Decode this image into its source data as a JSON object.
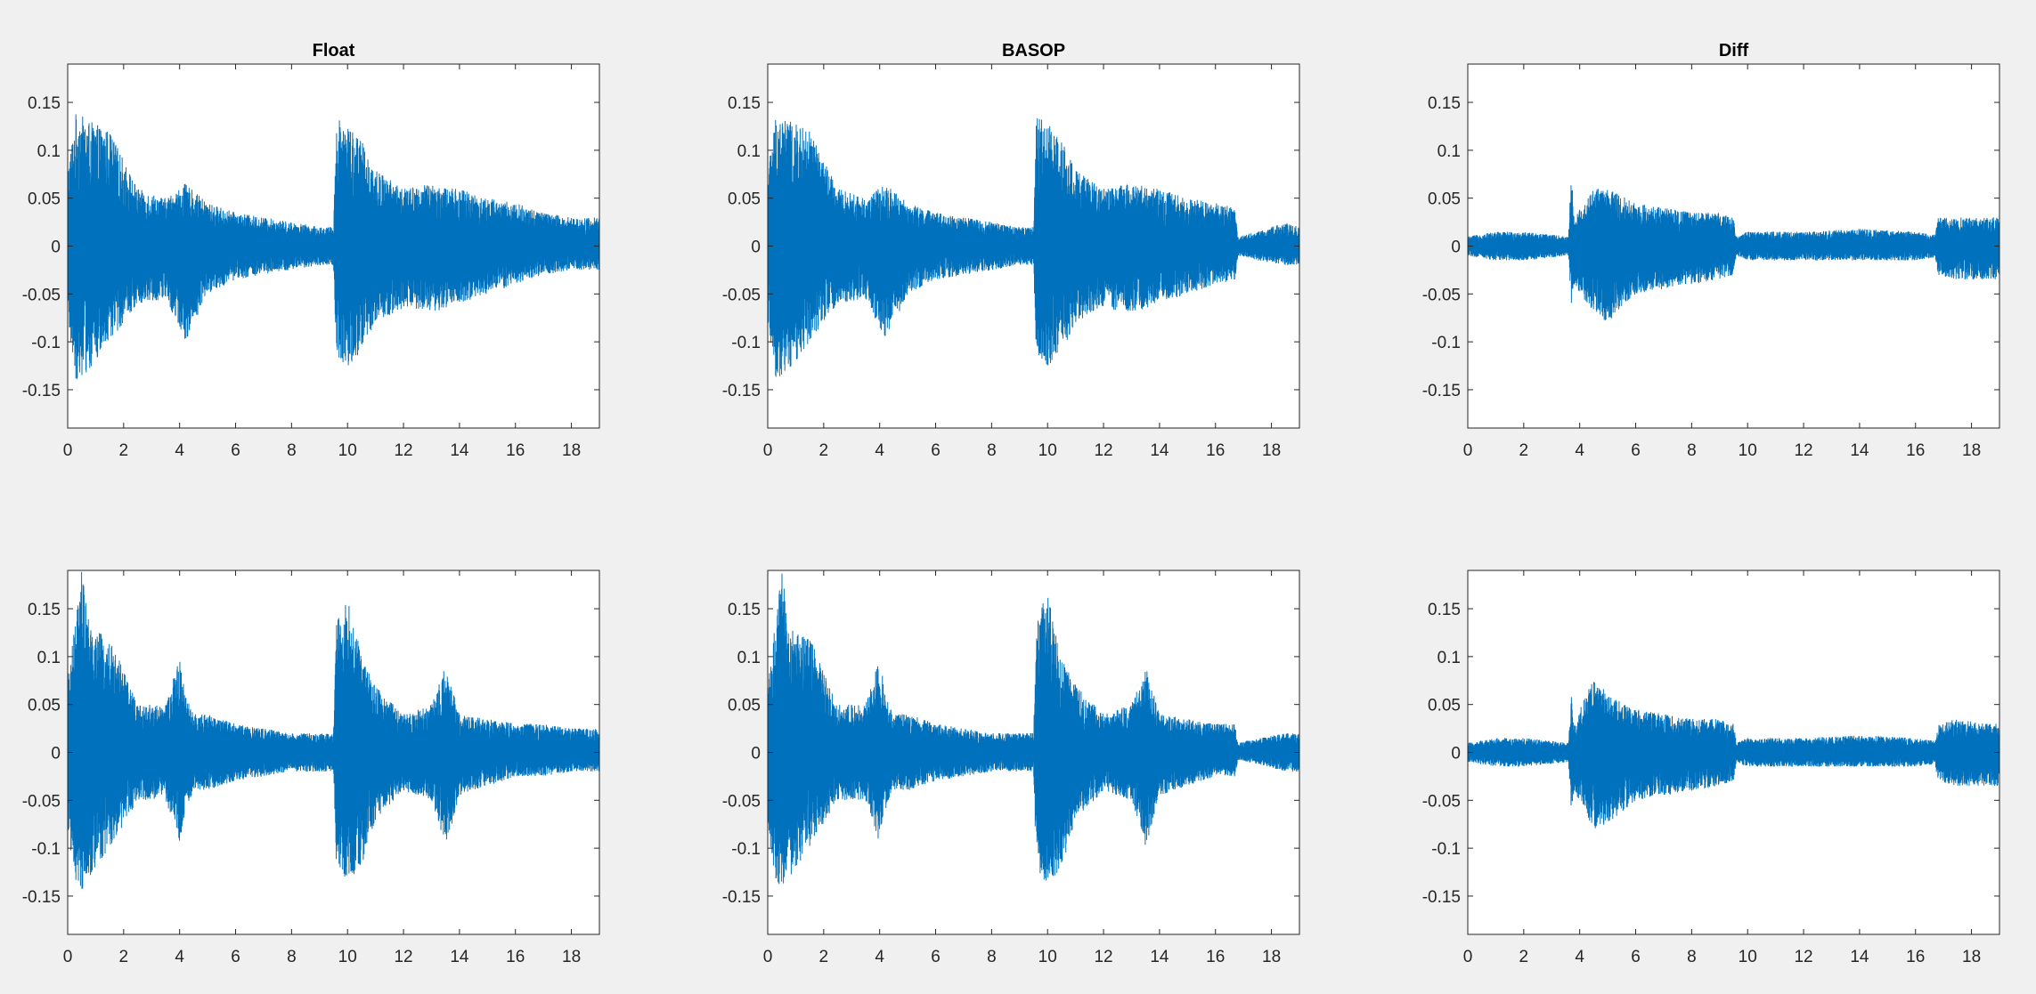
{
  "figure": {
    "background": "#f0f0f0",
    "axes_background": "#ffffff",
    "axes_color": "#262626",
    "line_color": "#0072bd"
  },
  "chart_data": [
    {
      "type": "line",
      "title": "Float",
      "xlim": [
        0,
        19
      ],
      "ylim": [
        -0.19,
        0.19
      ],
      "xticks": [
        0,
        2,
        4,
        6,
        8,
        10,
        12,
        14,
        16,
        18
      ],
      "yticks": [
        -0.15,
        -0.1,
        -0.05,
        0,
        0.05,
        0.1,
        0.15
      ],
      "ytick_labels": [
        "-0.15",
        "-0.1",
        "-0.05",
        "0",
        "0.05",
        "0.1",
        "0.15"
      ],
      "series": [
        {
          "color": "#0072bd",
          "envelope": {
            "x": [
              0,
              0.3,
              0.8,
              1.5,
              2.5,
              3.5,
              4.2,
              5,
              6,
              7,
              8,
              9,
              9.5,
              9.6,
              10,
              10.5,
              11,
              12,
              13,
              14,
              15,
              16,
              17,
              18,
              19
            ],
            "max": [
              0.08,
              0.14,
              0.13,
              0.12,
              0.06,
              0.05,
              0.065,
              0.045,
              0.035,
              0.03,
              0.025,
              0.02,
              0.02,
              0.135,
              0.13,
              0.11,
              0.08,
              0.06,
              0.065,
              0.06,
              0.05,
              0.045,
              0.035,
              0.03,
              0.03
            ],
            "min": [
              -0.08,
              -0.14,
              -0.13,
              -0.1,
              -0.06,
              -0.055,
              -0.1,
              -0.05,
              -0.035,
              -0.03,
              -0.025,
              -0.02,
              -0.02,
              -0.12,
              -0.125,
              -0.115,
              -0.08,
              -0.065,
              -0.07,
              -0.06,
              -0.05,
              -0.04,
              -0.03,
              -0.025,
              -0.025
            ]
          }
        }
      ]
    },
    {
      "type": "line",
      "title": "BASOP",
      "xlim": [
        0,
        19
      ],
      "ylim": [
        -0.19,
        0.19
      ],
      "xticks": [
        0,
        2,
        4,
        6,
        8,
        10,
        12,
        14,
        16,
        18
      ],
      "yticks": [
        -0.15,
        -0.1,
        -0.05,
        0,
        0.05,
        0.1,
        0.15
      ],
      "ytick_labels": [
        "-0.15",
        "-0.1",
        "-0.05",
        "0",
        "0.05",
        "0.1",
        "0.15"
      ],
      "series": [
        {
          "color": "#0072bd",
          "envelope": {
            "x": [
              0,
              0.3,
              0.8,
              1.5,
              2.5,
              3.5,
              4.2,
              5,
              6,
              7,
              8,
              9,
              9.5,
              9.6,
              10,
              10.5,
              11,
              12,
              13,
              14,
              15,
              16,
              16.7,
              16.8,
              17.5,
              18.5,
              19
            ],
            "max": [
              0.08,
              0.14,
              0.13,
              0.12,
              0.06,
              0.05,
              0.065,
              0.045,
              0.035,
              0.03,
              0.025,
              0.02,
              0.02,
              0.135,
              0.13,
              0.11,
              0.08,
              0.06,
              0.065,
              0.06,
              0.05,
              0.045,
              0.04,
              0.01,
              0.015,
              0.025,
              0.02
            ],
            "min": [
              -0.08,
              -0.14,
              -0.13,
              -0.1,
              -0.06,
              -0.055,
              -0.1,
              -0.05,
              -0.035,
              -0.03,
              -0.025,
              -0.02,
              -0.02,
              -0.12,
              -0.125,
              -0.115,
              -0.08,
              -0.065,
              -0.07,
              -0.06,
              -0.05,
              -0.04,
              -0.035,
              -0.01,
              -0.015,
              -0.02,
              -0.02
            ]
          }
        }
      ]
    },
    {
      "type": "line",
      "title": "Diff",
      "xlim": [
        0,
        19
      ],
      "ylim": [
        -0.19,
        0.19
      ],
      "xticks": [
        0,
        2,
        4,
        6,
        8,
        10,
        12,
        14,
        16,
        18
      ],
      "yticks": [
        -0.15,
        -0.1,
        -0.05,
        0,
        0.05,
        0.1,
        0.15
      ],
      "ytick_labels": [
        "-0.15",
        "-0.1",
        "-0.05",
        "0",
        "0.05",
        "0.1",
        "0.15"
      ],
      "series": [
        {
          "color": "#0072bd",
          "envelope": {
            "x": [
              0,
              1,
              2,
              3,
              3.6,
              3.7,
              3.8,
              4.5,
              5,
              6,
              7,
              8,
              9,
              9.5,
              9.6,
              10,
              12,
              14,
              16,
              16.7,
              16.8,
              17.5,
              18.5,
              19
            ],
            "max": [
              0.01,
              0.015,
              0.015,
              0.012,
              0.01,
              0.08,
              0.03,
              0.06,
              0.06,
              0.045,
              0.04,
              0.035,
              0.035,
              0.03,
              0.01,
              0.015,
              0.015,
              0.018,
              0.015,
              0.012,
              0.03,
              0.03,
              0.03,
              0.03
            ],
            "min": [
              -0.01,
              -0.015,
              -0.015,
              -0.012,
              -0.01,
              -0.065,
              -0.04,
              -0.07,
              -0.08,
              -0.05,
              -0.045,
              -0.04,
              -0.035,
              -0.03,
              -0.01,
              -0.015,
              -0.015,
              -0.015,
              -0.015,
              -0.012,
              -0.03,
              -0.035,
              -0.035,
              -0.035
            ]
          }
        }
      ]
    },
    {
      "type": "line",
      "title": "",
      "xlim": [
        0,
        19
      ],
      "ylim": [
        -0.19,
        0.19
      ],
      "xticks": [
        0,
        2,
        4,
        6,
        8,
        10,
        12,
        14,
        16,
        18
      ],
      "yticks": [
        -0.15,
        -0.1,
        -0.05,
        0,
        0.05,
        0.1,
        0.15
      ],
      "ytick_labels": [
        "-0.15",
        "-0.1",
        "-0.05",
        "0",
        "0.05",
        "0.1",
        "0.15"
      ],
      "series": [
        {
          "color": "#0072bd",
          "envelope": {
            "x": [
              0,
              0.3,
              0.5,
              0.8,
              1.5,
              2.5,
              3.5,
              4.0,
              4.2,
              4.5,
              5,
              6,
              7,
              8,
              9,
              9.5,
              9.6,
              10,
              10.5,
              11,
              12,
              13,
              13.5,
              14,
              15,
              16,
              17,
              18,
              19
            ],
            "max": [
              0.08,
              0.14,
              0.19,
              0.13,
              0.12,
              0.05,
              0.05,
              0.1,
              0.06,
              0.04,
              0.04,
              0.03,
              0.025,
              0.02,
              0.02,
              0.02,
              0.135,
              0.165,
              0.1,
              0.07,
              0.04,
              0.05,
              0.09,
              0.04,
              0.035,
              0.03,
              0.03,
              0.025,
              0.025
            ],
            "min": [
              -0.08,
              -0.14,
              -0.145,
              -0.13,
              -0.1,
              -0.05,
              -0.05,
              -0.095,
              -0.06,
              -0.04,
              -0.04,
              -0.03,
              -0.025,
              -0.02,
              -0.02,
              -0.02,
              -0.12,
              -0.135,
              -0.12,
              -0.07,
              -0.04,
              -0.05,
              -0.1,
              -0.045,
              -0.035,
              -0.025,
              -0.025,
              -0.02,
              -0.02
            ]
          }
        }
      ]
    },
    {
      "type": "line",
      "title": "",
      "xlim": [
        0,
        19
      ],
      "ylim": [
        -0.19,
        0.19
      ],
      "xticks": [
        0,
        2,
        4,
        6,
        8,
        10,
        12,
        14,
        16,
        18
      ],
      "yticks": [
        -0.15,
        -0.1,
        -0.05,
        0,
        0.05,
        0.1,
        0.15
      ],
      "ytick_labels": [
        "-0.15",
        "-0.1",
        "-0.05",
        "0",
        "0.05",
        "0.1",
        "0.15"
      ],
      "series": [
        {
          "color": "#0072bd",
          "envelope": {
            "x": [
              0,
              0.3,
              0.5,
              0.8,
              1.5,
              2.5,
              3.5,
              4.0,
              4.2,
              4.5,
              5,
              6,
              7,
              8,
              9,
              9.5,
              9.6,
              10,
              10.5,
              11,
              12,
              13,
              13.5,
              14,
              15,
              16,
              16.7,
              16.8,
              17.5,
              18.5,
              19
            ],
            "max": [
              0.08,
              0.14,
              0.19,
              0.13,
              0.12,
              0.05,
              0.05,
              0.1,
              0.06,
              0.04,
              0.04,
              0.03,
              0.025,
              0.02,
              0.02,
              0.02,
              0.135,
              0.17,
              0.1,
              0.07,
              0.04,
              0.05,
              0.09,
              0.04,
              0.035,
              0.03,
              0.03,
              0.01,
              0.015,
              0.02,
              0.02
            ],
            "min": [
              -0.08,
              -0.14,
              -0.14,
              -0.13,
              -0.1,
              -0.05,
              -0.05,
              -0.095,
              -0.06,
              -0.04,
              -0.04,
              -0.03,
              -0.025,
              -0.02,
              -0.02,
              -0.02,
              -0.12,
              -0.14,
              -0.12,
              -0.07,
              -0.04,
              -0.05,
              -0.1,
              -0.045,
              -0.035,
              -0.025,
              -0.025,
              -0.008,
              -0.012,
              -0.02,
              -0.02
            ]
          }
        }
      ]
    },
    {
      "type": "line",
      "title": "",
      "xlim": [
        0,
        19
      ],
      "ylim": [
        -0.19,
        0.19
      ],
      "xticks": [
        0,
        2,
        4,
        6,
        8,
        10,
        12,
        14,
        16,
        18
      ],
      "yticks": [
        -0.15,
        -0.1,
        -0.05,
        0,
        0.05,
        0.1,
        0.15
      ],
      "ytick_labels": [
        "-0.15",
        "-0.1",
        "-0.05",
        "0",
        "0.05",
        "0.1",
        "0.15"
      ],
      "series": [
        {
          "color": "#0072bd",
          "envelope": {
            "x": [
              0,
              1,
              2,
              3,
              3.6,
              3.7,
              3.8,
              4.5,
              5,
              6,
              7,
              8,
              9,
              9.5,
              9.6,
              10,
              12,
              14,
              16,
              16.7,
              16.8,
              17.5,
              18.5,
              19
            ],
            "max": [
              0.01,
              0.015,
              0.015,
              0.012,
              0.01,
              0.06,
              0.03,
              0.08,
              0.06,
              0.045,
              0.04,
              0.035,
              0.035,
              0.03,
              0.01,
              0.015,
              0.015,
              0.018,
              0.015,
              0.012,
              0.03,
              0.035,
              0.03,
              0.03
            ],
            "min": [
              -0.01,
              -0.015,
              -0.015,
              -0.012,
              -0.01,
              -0.06,
              -0.04,
              -0.08,
              -0.075,
              -0.05,
              -0.045,
              -0.04,
              -0.035,
              -0.03,
              -0.01,
              -0.015,
              -0.015,
              -0.015,
              -0.015,
              -0.012,
              -0.03,
              -0.035,
              -0.035,
              -0.035
            ]
          }
        }
      ]
    }
  ]
}
